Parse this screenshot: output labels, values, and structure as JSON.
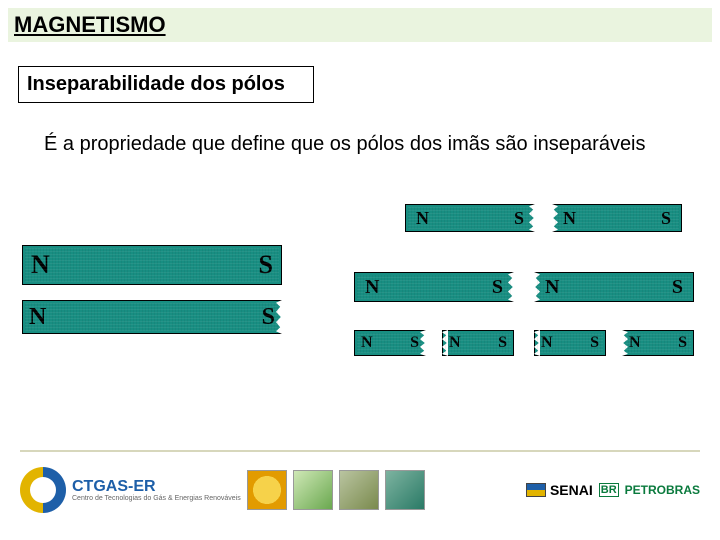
{
  "title": "MAGNETISMO",
  "subtitle": "Inseparabilidade dos pólos",
  "body": "É a propriedade que define que os pólos dos imãs são inseparáveis",
  "poles": {
    "N": "N",
    "S": "S"
  },
  "colors": {
    "title_bg": "#eaf4df",
    "magnet_fill": "#188e82",
    "divider": "#d7d7bc"
  },
  "magnets": {
    "left1": {
      "left": "N",
      "right": "S"
    },
    "left2": {
      "left": "N",
      "right": "S"
    },
    "row1": [
      {
        "left": "N",
        "right": "S"
      },
      {
        "left": "N",
        "right": "S"
      }
    ],
    "row2": [
      {
        "left": "N",
        "right": "S"
      },
      {
        "left": "N",
        "right": "S"
      }
    ],
    "row3": [
      {
        "left": "N",
        "right": "S"
      },
      {
        "left": "N",
        "right": "S"
      },
      {
        "left": "N",
        "right": "S"
      },
      {
        "left": "N",
        "right": "S"
      }
    ]
  },
  "footer": {
    "ctgas": {
      "name": "CTGAS-ER",
      "tagline": "Centro de Tecnologias do Gás & Energias Renováveis"
    },
    "senai": "SENAI",
    "petrobras_tag": "BR",
    "petrobras": "PETROBRAS"
  }
}
